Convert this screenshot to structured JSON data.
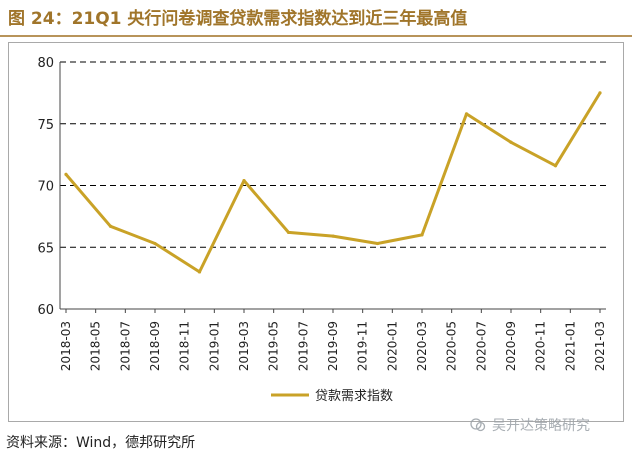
{
  "figure": {
    "title": "图 24：21Q1 央行问卷调查贷款需求指数达到近三年最高值",
    "source": "资料来源：Wind，德邦研究所",
    "watermark": "吴开达策略研究"
  },
  "colors": {
    "title": "#a0752a",
    "series": "#c9a227",
    "grid": "#000000"
  },
  "chart_data": {
    "type": "line",
    "title": "",
    "xlabel": "",
    "ylabel": "",
    "ylim": [
      60,
      80
    ],
    "yticks": [
      60,
      65,
      70,
      75,
      80
    ],
    "grid": "horizontal-dashed",
    "legend_position": "bottom-center",
    "categories": [
      "2018-03",
      "2018-05",
      "2018-07",
      "2018-09",
      "2018-11",
      "2019-01",
      "2019-03",
      "2019-05",
      "2019-07",
      "2019-09",
      "2019-11",
      "2020-01",
      "2020-03",
      "2020-05",
      "2020-07",
      "2020-09",
      "2020-11",
      "2021-01",
      "2021-03"
    ],
    "series": [
      {
        "name": "贷款需求指数",
        "color": "#c9a227",
        "points": [
          {
            "x": "2018-03",
            "y": 70.9
          },
          {
            "x": "2018-06",
            "y": 66.7
          },
          {
            "x": "2018-09",
            "y": 65.3
          },
          {
            "x": "2018-12",
            "y": 63.0
          },
          {
            "x": "2019-03",
            "y": 70.4
          },
          {
            "x": "2019-06",
            "y": 66.2
          },
          {
            "x": "2019-09",
            "y": 65.9
          },
          {
            "x": "2019-12",
            "y": 65.3
          },
          {
            "x": "2020-03",
            "y": 66.0
          },
          {
            "x": "2020-06",
            "y": 75.8
          },
          {
            "x": "2020-09",
            "y": 73.5
          },
          {
            "x": "2020-12",
            "y": 71.6
          },
          {
            "x": "2021-03",
            "y": 77.5
          }
        ]
      }
    ]
  }
}
